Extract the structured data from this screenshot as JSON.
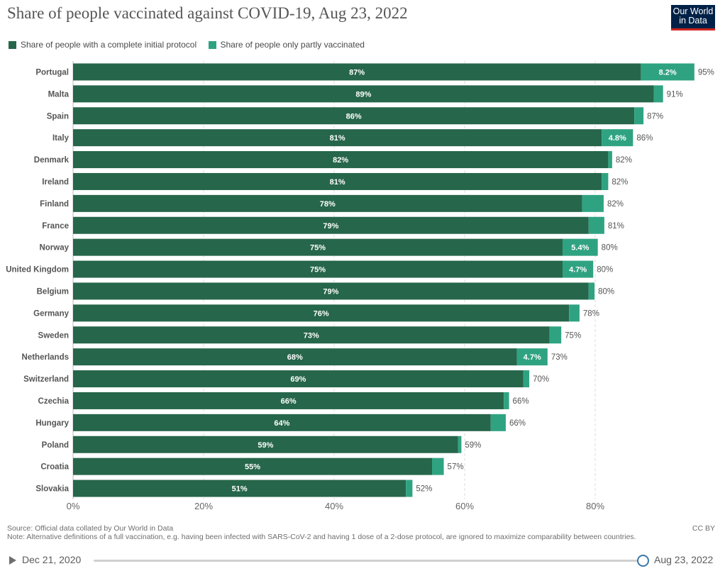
{
  "header": {
    "title": "Share of people vaccinated against COVID-19, Aug 23, 2022",
    "logo_line1": "Our World",
    "logo_line2": "in Data"
  },
  "legend": {
    "items": [
      {
        "label": "Share of people with a complete initial protocol",
        "color": "#26664a"
      },
      {
        "label": "Share of people only partly vaccinated",
        "color": "#2fa381"
      }
    ]
  },
  "chart_data": {
    "type": "bar",
    "orientation": "horizontal",
    "stacked": true,
    "title": "Share of people vaccinated against COVID-19, Aug 23, 2022",
    "categories": [
      "Portugal",
      "Malta",
      "Spain",
      "Italy",
      "Denmark",
      "Ireland",
      "Finland",
      "France",
      "Norway",
      "United Kingdom",
      "Belgium",
      "Germany",
      "Sweden",
      "Netherlands",
      "Switzerland",
      "Czechia",
      "Hungary",
      "Poland",
      "Croatia",
      "Slovakia"
    ],
    "series": [
      {
        "name": "Share of people with a complete initial protocol",
        "color": "#26664a",
        "values": [
          87,
          89,
          86,
          81,
          82,
          81,
          78,
          79,
          75,
          75,
          79,
          76,
          73,
          68,
          69,
          66,
          64,
          59,
          55,
          51
        ],
        "labels": [
          "87%",
          "89%",
          "86%",
          "81%",
          "82%",
          "81%",
          "78%",
          "79%",
          "75%",
          "75%",
          "79%",
          "76%",
          "73%",
          "68%",
          "69%",
          "66%",
          "64%",
          "59%",
          "55%",
          "51%"
        ]
      },
      {
        "name": "Share of people only partly vaccinated",
        "color": "#2fa381",
        "values": [
          8.2,
          1.4,
          1.4,
          4.8,
          0.6,
          1,
          3.3,
          2.4,
          5.4,
          4.7,
          0.9,
          1.6,
          1.8,
          4.7,
          0.9,
          0.8,
          2.3,
          0.5,
          1.8,
          1
        ],
        "labels": [
          "8.2%",
          "",
          "",
          "4.8%",
          "",
          "",
          "",
          "",
          "5.4%",
          "4.7%",
          "",
          "",
          "",
          "4.7%",
          "",
          "",
          "",
          "",
          "",
          ""
        ]
      }
    ],
    "totals": [
      "95%",
      "91%",
      "87%",
      "86%",
      "82%",
      "82%",
      "82%",
      "81%",
      "80%",
      "80%",
      "80%",
      "78%",
      "75%",
      "73%",
      "70%",
      "66%",
      "66%",
      "59%",
      "57%",
      "52%"
    ],
    "xlim": [
      0,
      100
    ],
    "xticks": [
      0,
      20,
      40,
      60,
      80
    ],
    "xtick_labels": [
      "0%",
      "20%",
      "40%",
      "60%",
      "80%"
    ],
    "grid": "vertical dashed",
    "legend_position": "top-left"
  },
  "footer": {
    "source": "Source: Official data collated by Our World in Data",
    "note": "Note: Alternative definitions of a full vaccination, e.g. having been infected with SARS-CoV-2 and having 1 dose of a 2-dose protocol, are ignored to maximize comparability between countries.",
    "license": "CC BY"
  },
  "timeline": {
    "start": "Dec 21, 2020",
    "end": "Aug 23, 2022",
    "position": 1.0
  }
}
